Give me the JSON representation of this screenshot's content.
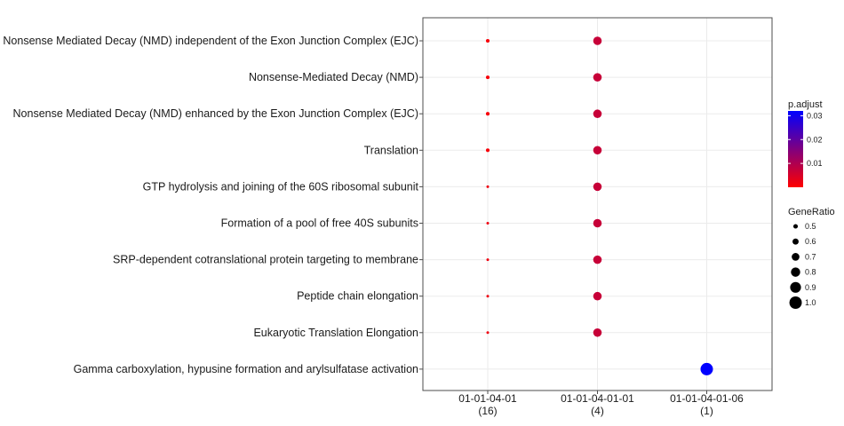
{
  "chart_data": {
    "type": "scatter",
    "title": "",
    "xlabel": "",
    "ylabel": "",
    "categories_x": [
      {
        "label": "01-01-04-01",
        "count": "(16)"
      },
      {
        "label": "01-01-04-01-01",
        "count": "(4)"
      },
      {
        "label": "01-01-04-01-06",
        "count": "(1)"
      }
    ],
    "categories_y": [
      "Nonsense Mediated Decay (NMD) independent of the Exon Junction Complex (EJC)",
      "Nonsense-Mediated Decay (NMD)",
      "Nonsense Mediated Decay (NMD) enhanced by the Exon Junction Complex (EJC)",
      "Translation",
      "GTP hydrolysis and joining of the 60S ribosomal subunit",
      "Formation of a pool of free 40S subunits",
      "SRP-dependent cotranslational protein targeting to membrane",
      "Peptide chain elongation",
      "Eukaryotic Translation Elongation",
      "Gamma carboxylation, hypusine formation and arylsulfatase activation"
    ],
    "points": [
      {
        "x": 0,
        "y": 0,
        "gene_ratio": 0.44,
        "p_adjust": 0.001
      },
      {
        "x": 0,
        "y": 1,
        "gene_ratio": 0.44,
        "p_adjust": 0.001
      },
      {
        "x": 0,
        "y": 2,
        "gene_ratio": 0.44,
        "p_adjust": 0.001
      },
      {
        "x": 0,
        "y": 3,
        "gene_ratio": 0.44,
        "p_adjust": 0.001
      },
      {
        "x": 0,
        "y": 4,
        "gene_ratio": 0.38,
        "p_adjust": 0.002
      },
      {
        "x": 0,
        "y": 5,
        "gene_ratio": 0.38,
        "p_adjust": 0.002
      },
      {
        "x": 0,
        "y": 6,
        "gene_ratio": 0.38,
        "p_adjust": 0.002
      },
      {
        "x": 0,
        "y": 7,
        "gene_ratio": 0.38,
        "p_adjust": 0.002
      },
      {
        "x": 0,
        "y": 8,
        "gene_ratio": 0.38,
        "p_adjust": 0.002
      },
      {
        "x": 1,
        "y": 0,
        "gene_ratio": 0.75,
        "p_adjust": 0.007
      },
      {
        "x": 1,
        "y": 1,
        "gene_ratio": 0.75,
        "p_adjust": 0.007
      },
      {
        "x": 1,
        "y": 2,
        "gene_ratio": 0.75,
        "p_adjust": 0.007
      },
      {
        "x": 1,
        "y": 3,
        "gene_ratio": 0.75,
        "p_adjust": 0.007
      },
      {
        "x": 1,
        "y": 4,
        "gene_ratio": 0.75,
        "p_adjust": 0.007
      },
      {
        "x": 1,
        "y": 5,
        "gene_ratio": 0.75,
        "p_adjust": 0.007
      },
      {
        "x": 1,
        "y": 6,
        "gene_ratio": 0.75,
        "p_adjust": 0.007
      },
      {
        "x": 1,
        "y": 7,
        "gene_ratio": 0.75,
        "p_adjust": 0.007
      },
      {
        "x": 1,
        "y": 8,
        "gene_ratio": 0.75,
        "p_adjust": 0.007
      },
      {
        "x": 2,
        "y": 9,
        "gene_ratio": 1.0,
        "p_adjust": 0.032
      }
    ],
    "color_legend": {
      "title": "p.adjust",
      "ticks": [
        0.01,
        0.02,
        0.03
      ],
      "tick_labels": [
        "0.01",
        "0.02",
        "0.03"
      ],
      "range": [
        0.0,
        0.032
      ],
      "low_color": "#ff0000",
      "high_color": "#0000ff"
    },
    "size_legend": {
      "title": "GeneRatio",
      "values": [
        0.5,
        0.6,
        0.7,
        0.8,
        0.9,
        1.0
      ],
      "labels": [
        "0.5",
        "0.6",
        "0.7",
        "0.8",
        "0.9",
        "1.0"
      ]
    },
    "grid": true,
    "legend_position": "right"
  }
}
